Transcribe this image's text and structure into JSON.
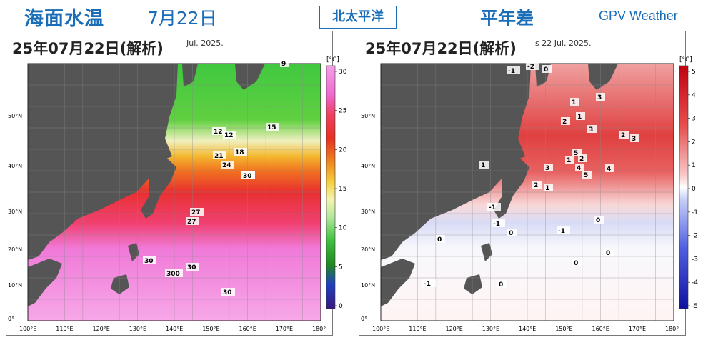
{
  "header": {
    "title": "海面水温",
    "date": "7月22日",
    "region_button": "北太平洋",
    "anomaly_label": "平年差",
    "brand": "GPV Weather"
  },
  "colors": {
    "header_blue": "#1a6db7",
    "land": "#555555"
  },
  "panels": [
    {
      "name": "sst",
      "label": "25年07月22日(解析)",
      "subtitle": "Jul. 2025.",
      "unit": "[°C]",
      "colorbar_ticks": [
        "30",
        "25",
        "20",
        "15",
        "10",
        "5",
        "0"
      ],
      "contour_labels": [
        "9",
        "12",
        "12",
        "15",
        "18",
        "21",
        "24",
        "27",
        "27",
        "27",
        "30",
        "30",
        "300",
        "30",
        "30"
      ]
    },
    {
      "name": "anomaly",
      "label": "25年07月22日(解析)",
      "subtitle": "s 22 Jul. 2025.",
      "unit": "[°C]",
      "colorbar_ticks": [
        "5",
        "4",
        "3",
        "2",
        "1",
        "0",
        "-1",
        "-2",
        "-3",
        "-4",
        "-5"
      ],
      "contour_labels": [
        "-2",
        "0",
        "-1",
        "3",
        "1",
        "2",
        "3",
        "1",
        "2",
        "3",
        "2",
        "1",
        "5",
        "4",
        "4",
        "5",
        "3",
        "1",
        "2",
        "1",
        "-1",
        "-1",
        "-1",
        "0",
        "0",
        "0",
        "0",
        "-1",
        "0",
        "0"
      ]
    }
  ],
  "axes": {
    "lat_labels": [
      "50°N",
      "40°N",
      "30°N",
      "20°N",
      "10°N",
      "0°"
    ],
    "lon_labels": [
      "100°E",
      "110°E",
      "120°E",
      "130°E",
      "140°E",
      "150°E",
      "160°E",
      "170°E",
      "180°"
    ]
  }
}
